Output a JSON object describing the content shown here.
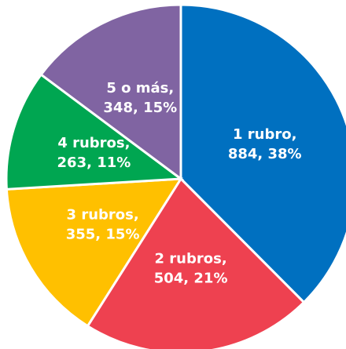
{
  "chart_data": {
    "type": "pie",
    "categories": [
      "1 rubro,",
      "2 rubros,",
      "3 rubros,",
      "4 rubros,",
      "5 o más,"
    ],
    "values": [
      884,
      504,
      355,
      263,
      348
    ],
    "value_labels": [
      "884, 38%",
      "504, 21%",
      "355, 15%",
      "263, 11%",
      "348, 15%"
    ],
    "colors": [
      "#0070c0",
      "#ee4150",
      "#ffc000",
      "#00a651",
      "#8064a2"
    ]
  }
}
